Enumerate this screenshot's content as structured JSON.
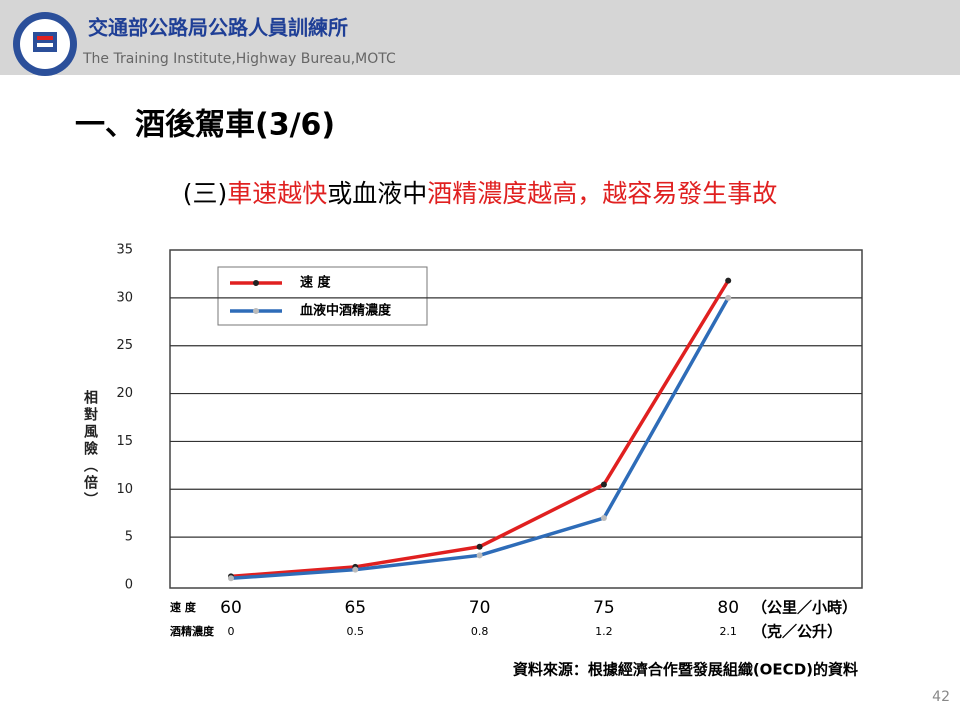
{
  "header": {
    "org_name": "交通部公路局公路人員訓練所",
    "org_name_en": "The Training Institute,Highway Bureau,MOTC"
  },
  "slide_title": "一、酒後駕車(3/6)",
  "subtitle": [
    {
      "text": "(三)",
      "color": "#000000"
    },
    {
      "text": "車速越快",
      "color": "#e02020"
    },
    {
      "text": "或血液中",
      "color": "#000000"
    },
    {
      "text": "酒精濃度越高，越容易發生事故",
      "color": "#e02020"
    }
  ],
  "source": "資料來源：根據經濟合作暨發展組織(OECD)的資料",
  "page_number": 42,
  "chart_data": {
    "type": "line",
    "y_label": "相對風險（倍）",
    "x_row_label": "速 度",
    "x_row_unit": "（公里／小時）",
    "categories": [
      "60",
      "65",
      "70",
      "75",
      "80"
    ],
    "x2_row_label": "酒精濃度",
    "x2_row_unit": "（克／公升）",
    "categories2": [
      "0",
      "0.5",
      "0.8",
      "1.2",
      "2.1"
    ],
    "series": [
      {
        "name": "速 度",
        "color": "#e02020",
        "marker_color": "#222222",
        "values": [
          0.9,
          1.9,
          4.0,
          10.5,
          31.8
        ]
      },
      {
        "name": "血液中酒精濃度",
        "color": "#2e6cb8",
        "marker_color": "#bbbbbb",
        "values": [
          0.7,
          1.6,
          3.1,
          7.0,
          30.0
        ]
      }
    ],
    "ylim": [
      0,
      35
    ],
    "yticks": [
      0,
      5,
      10,
      15,
      20,
      25,
      30,
      35
    ],
    "grid": true,
    "legend": "top-left"
  }
}
